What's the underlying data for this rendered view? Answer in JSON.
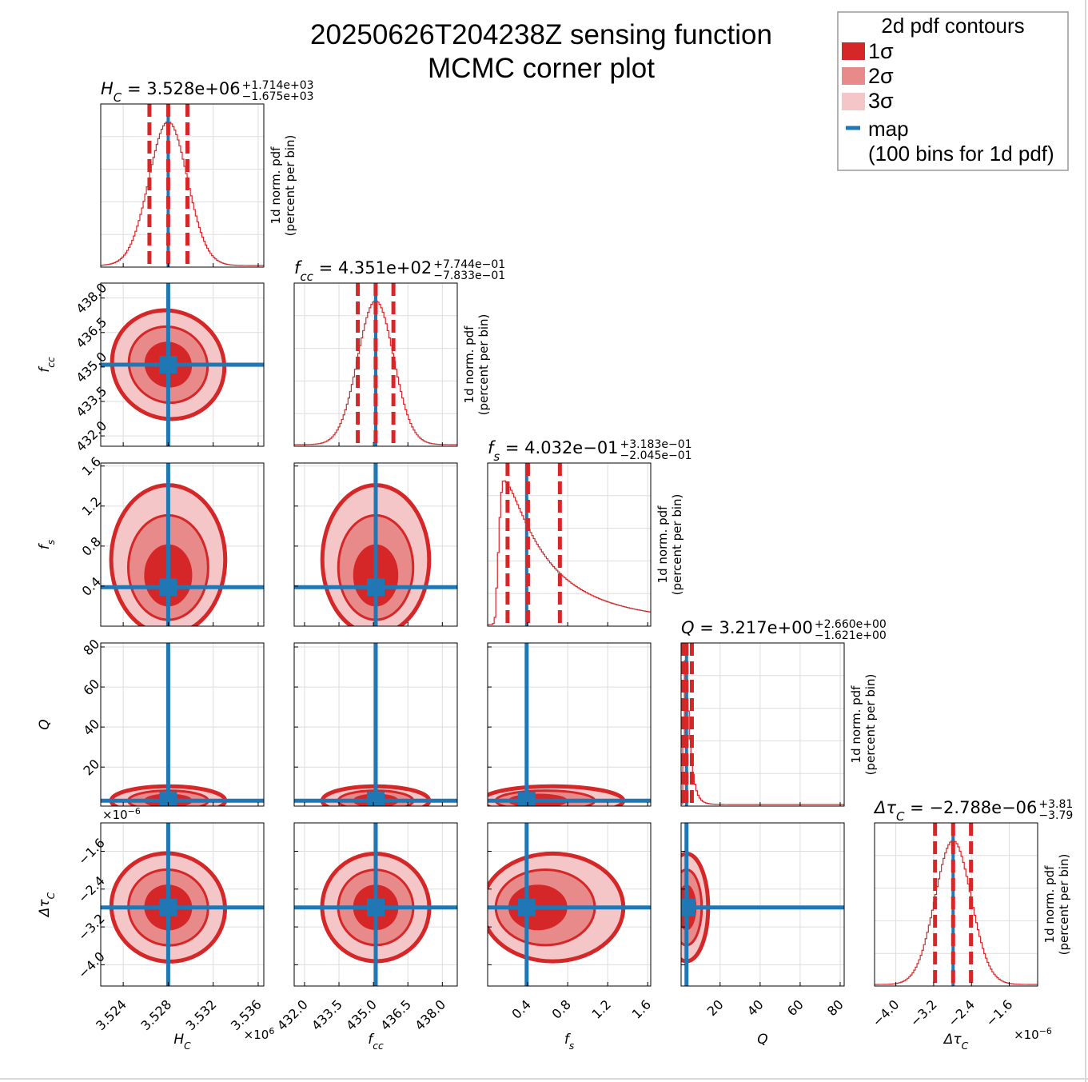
{
  "title_lines": [
    "20250626T204238Z sensing function",
    "MCMC corner plot"
  ],
  "legend": {
    "title": "2d pdf contours",
    "entries": [
      {
        "label": "1σ",
        "color": "#d62728"
      },
      {
        "label": "2σ",
        "color": "#e8898a"
      },
      {
        "label": "3σ",
        "color": "#f4c6c7"
      },
      {
        "label": "map",
        "color": "#1f77b4"
      }
    ],
    "note": "(100 bins for 1d pdf)"
  },
  "colors": {
    "contour_1sigma": "#d62728",
    "contour_2sigma": "#e8898a",
    "contour_3sigma": "#f4c6c7",
    "map": "#1f77b4",
    "histogram": "#d62728",
    "grid": "#dddddd"
  },
  "hist_ylabel": [
    "1d norm. pdf",
    "(percent per bin)"
  ],
  "chart_data": {
    "type": "corner",
    "parameters": [
      {
        "key": "H_C",
        "axis_label": "H",
        "axis_sub": "C",
        "title": {
          "name": "H",
          "sub": "C",
          "value": "3.528e+06",
          "plus": "+1.714e+03",
          "minus": "−1.675e+03"
        },
        "range": [
          3522000.0,
          3536500.0
        ],
        "ticks": [
          3524000.0,
          3528000.0,
          3532000.0,
          3536000.0
        ],
        "tick_labels": [
          "3.524",
          "3.528",
          "3.532",
          "3.536"
        ],
        "offset_label": "×10^6",
        "map": 3528000.0,
        "median": 3528000.0,
        "lower": 3526330.0,
        "upper": 3529710.0,
        "hist_shape": "gauss",
        "sigma": 1700.0
      },
      {
        "key": "f_cc",
        "axis_label": "f",
        "axis_sub": "cc",
        "title": {
          "name": "f",
          "sub": "cc",
          "value": "4.351e+02",
          "plus": "+7.744e−01",
          "minus": "−7.833e−01"
        },
        "range": [
          431.55,
          438.65
        ],
        "ticks": [
          432.0,
          433.5,
          435.0,
          436.5,
          438.0
        ],
        "tick_labels": [
          "432.0",
          "433.5",
          "435.0",
          "436.5",
          "438.0"
        ],
        "map": 435.1,
        "median": 435.1,
        "lower": 434.32,
        "upper": 435.87,
        "hist_shape": "gauss",
        "sigma": 0.78
      },
      {
        "key": "f_s",
        "axis_label": "f",
        "axis_sub": "s",
        "title": {
          "name": "f",
          "sub": "s",
          "value": "4.032e−01",
          "plus": "+3.183e−01",
          "minus": "−2.045e−01"
        },
        "range": [
          0.0,
          1.63
        ],
        "ticks": [
          0.4,
          0.8,
          1.2,
          1.6
        ],
        "tick_labels": [
          "0.4",
          "0.8",
          "1.2",
          "1.6"
        ],
        "map": 0.39,
        "median": 0.403,
        "lower": 0.199,
        "upper": 0.722,
        "hist_shape": "skew",
        "peak": 0.16
      },
      {
        "key": "Q",
        "axis_label": "Q",
        "axis_sub": "",
        "title": {
          "name": "Q",
          "sub": "",
          "value": "3.217e+00",
          "plus": "+2.660e+00",
          "minus": "−1.621e+00"
        },
        "range": [
          0.5,
          82.0
        ],
        "ticks": [
          20,
          40,
          60,
          80
        ],
        "tick_labels": [
          "20",
          "40",
          "60",
          "80"
        ],
        "map": 3.2,
        "median": 3.217,
        "lower": 1.6,
        "upper": 5.877,
        "hist_shape": "spike",
        "peak": 2.5
      },
      {
        "key": "dtau_C",
        "axis_label": "Δτ",
        "axis_sub": "C",
        "title": {
          "name": "Δτ",
          "sub": "C",
          "value": "−2.788e−06",
          "plus": "+3.81",
          "minus": "−3.79"
        },
        "range": [
          -4.45e-06,
          -1e-06
        ],
        "ticks": [
          -4e-06,
          -3.2e-06,
          -2.4e-06,
          -1.6e-06
        ],
        "tick_labels": [
          "−4.0",
          "−3.2",
          "−2.4",
          "−1.6"
        ],
        "offset_label": "×10^−6",
        "map": -2.788e-06,
        "median": -2.788e-06,
        "lower": -3.17e-06,
        "upper": -2.41e-06,
        "hist_shape": "gauss",
        "sigma": 3.8e-07
      }
    ]
  }
}
